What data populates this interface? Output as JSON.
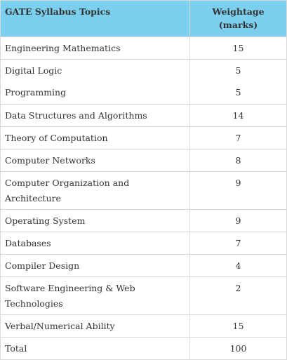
{
  "table": {
    "headers": {
      "topic": "GATE Syllabus Topics",
      "weightage": "Weightage (marks)"
    },
    "rows": [
      {
        "topic": "Engineering Mathematics",
        "marks": "15"
      },
      {
        "topic": "Digital Logic",
        "topic2": "Programming",
        "marks": "5",
        "marks2": "5"
      },
      {
        "topic": "Data Structures and Algorithms",
        "marks": "14"
      },
      {
        "topic": "Theory of Computation",
        "marks": "7"
      },
      {
        "topic": "Computer Networks",
        "marks": "8"
      },
      {
        "topic": "Computer Organization and Architecture",
        "marks": "9"
      },
      {
        "topic": "Operating System",
        "marks": "9"
      },
      {
        "topic": "Databases",
        "marks": "7"
      },
      {
        "topic": "Compiler Design",
        "marks": "4"
      },
      {
        "topic": "Software Engineering & Web Technologies",
        "marks": "2"
      },
      {
        "topic": "Verbal/Numerical Ability",
        "marks": "15"
      },
      {
        "topic": "Total",
        "marks": "100"
      }
    ]
  }
}
